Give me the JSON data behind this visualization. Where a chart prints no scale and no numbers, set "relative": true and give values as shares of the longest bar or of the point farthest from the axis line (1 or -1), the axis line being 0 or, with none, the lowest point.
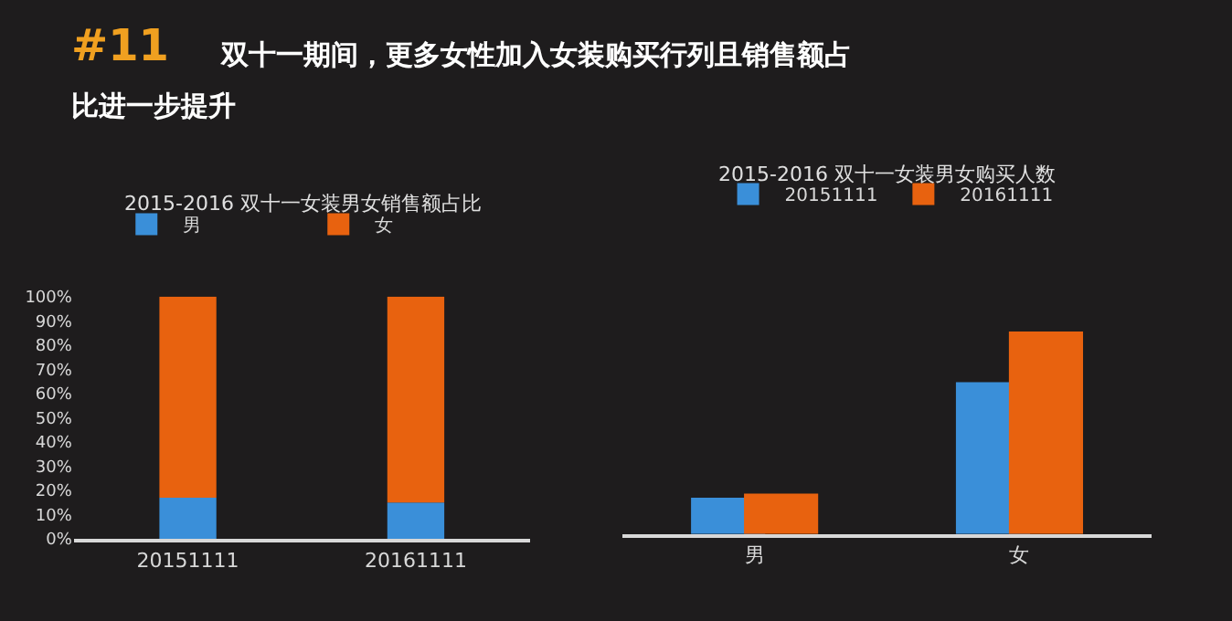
{
  "chart_data": [
    {
      "type": "bar",
      "title": "2015-2016 双十一女装男女销售额占比",
      "annotations": [
        "#11",
        "双十一期间，更多女性加入女装购买行列且销售额占比进一步提升"
      ],
      "categories": [
        "20151111",
        "20161111"
      ],
      "stacked": true,
      "legend": "top",
      "series": [
        {
          "name": "男",
          "color": "#3a8fd9",
          "values": [
            17,
            15
          ]
        },
        {
          "name": "女",
          "color": "#e8620f",
          "values": [
            83,
            85
          ]
        }
      ],
      "ylim": [
        0,
        100
      ],
      "yticks": [
        {
          "value": 0,
          "label": "0%"
        },
        {
          "value": 10,
          "label": "10%"
        },
        {
          "value": 20,
          "label": "20%"
        },
        {
          "value": 30,
          "label": "30%"
        },
        {
          "value": 40,
          "label": "40%"
        },
        {
          "value": 50,
          "label": "50%"
        },
        {
          "value": 60,
          "label": "60%"
        },
        {
          "value": 70,
          "label": "70%"
        },
        {
          "value": 80,
          "label": "80%"
        },
        {
          "value": 90,
          "label": "90%"
        },
        {
          "value": 100,
          "label": "100%"
        }
      ]
    },
    {
      "type": "bar",
      "title": "2015-2016 双十一女装男女购买人数",
      "categories": [
        "男",
        "女"
      ],
      "relative": true,
      "legend": "top",
      "series": [
        {
          "name": "20151111",
          "color": "#3a8fd9",
          "values": [
            0.18,
            0.75
          ]
        },
        {
          "name": "20161111",
          "color": "#e8620f",
          "values": [
            0.2,
            1
          ]
        }
      ]
    }
  ]
}
